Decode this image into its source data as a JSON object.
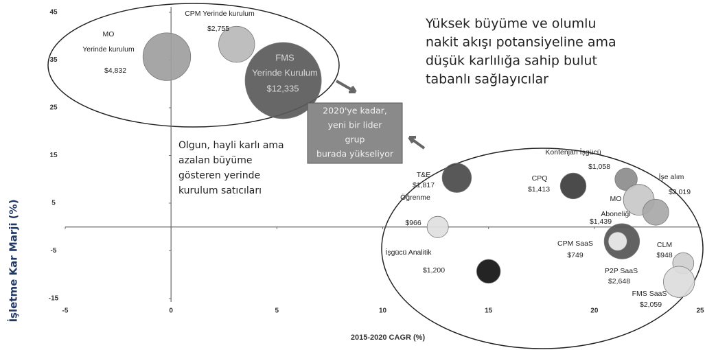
{
  "chart_data": {
    "type": "scatter",
    "xlabel": "2015-2020 CAGR (%)",
    "ylabel": "İşletme Kar Marji (%)",
    "xlim": [
      -5,
      25
    ],
    "xticks": [
      -5,
      0,
      5,
      10,
      15,
      20,
      25
    ],
    "ylim": [
      -15,
      45
    ],
    "yticks": [
      -15,
      -5,
      5,
      15,
      25,
      35,
      45
    ],
    "names": [
      [
        "MO",
        "Yerinde kurulum"
      ],
      [
        "CPM Yerinde kurulum"
      ],
      [
        "FMS",
        "Yerinde Kurulum"
      ],
      [
        "T&E"
      ],
      [
        "Öğrenme"
      ],
      [
        "İşgücü Analitik"
      ],
      [
        "Kontenjan İşgücü"
      ],
      [
        "CPQ"
      ],
      [
        "İşe alım"
      ],
      [
        "MO",
        "Aboneliği"
      ],
      [
        "P2P SaaS"
      ],
      [
        "CPM SaaS"
      ],
      [
        "CLM"
      ],
      [
        "FMS SaaS"
      ]
    ],
    "x": [
      -0.2,
      3.1,
      5.3,
      13.5,
      12.6,
      15,
      21.5,
      19,
      22.1,
      22.9,
      21.3,
      21.1,
      24.2,
      24
    ],
    "y": [
      35.7,
      38.3,
      30.7,
      10.3,
      0,
      -9.3,
      10,
      8.6,
      5.7,
      3.1,
      -3,
      -3,
      -7.6,
      -11.5
    ],
    "sizes": [
      4832,
      2755,
      12335,
      1817,
      966,
      1200,
      1058,
      1413,
      2019,
      1439,
      2648,
      749,
      948,
      2059
    ],
    "value_labels": [
      "$4,832",
      "$2,755",
      "$12,335",
      "$1,817",
      "$966",
      "$1,200",
      "$1,058",
      "$1,413",
      "$2,019",
      "$1,439",
      "$2,648",
      "$749",
      "$948",
      "$2,059"
    ],
    "colors": [
      "#9e9e9e",
      "#b8b8b8",
      "#5a5a5a",
      "#4a4a4a",
      "#e0e0e0",
      "#111111",
      "#8c8c8c",
      "#3c3c3c",
      "#c8c8c8",
      "#a8a8a8",
      "#555555",
      "#eeeeee",
      "#cfcfcf",
      "#dcdcdc"
    ],
    "annotations": {
      "cloud": [
        "Yüksek büyüme ve olumlu",
        "nakit akışı potansiyeline ama",
        "düşük karlılığa sahip bulut",
        "tabanlı sağlayıcılar"
      ],
      "onprem": [
        "Olgun, hayli karlı ama",
        "azalan büyüme",
        "gösteren yerinde",
        "kurulum satıcıları"
      ],
      "box": [
        "2020'ye kadar,",
        "yeni bir lider",
        "grup",
        "burada yükseliyor"
      ]
    }
  }
}
